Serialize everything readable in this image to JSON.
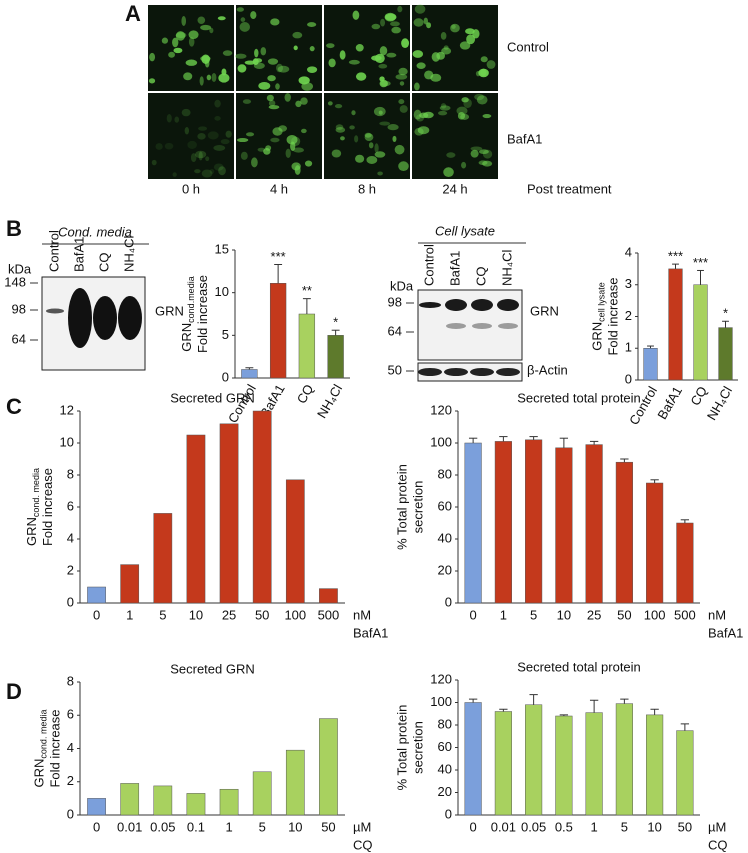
{
  "panel_labels": [
    "A",
    "B",
    "C",
    "D"
  ],
  "microscopy": {
    "rows": [
      "Control",
      "BafA1"
    ],
    "columns": [
      "0 h",
      "4 h",
      "8 h",
      "24 h"
    ],
    "caption": "Post treatment"
  },
  "blots": [
    {
      "header": "Cond. media",
      "unit": "kDa",
      "lanes": [
        "Control",
        "BafA1",
        "CQ",
        "NH₄Cl"
      ],
      "markers": [
        148,
        98,
        64
      ],
      "bands": [
        "GRN"
      ]
    },
    {
      "header": "Cell lysate",
      "unit": "kDa",
      "lanes": [
        "Control",
        "BafA1",
        "CQ",
        "NH₄Cl"
      ],
      "markers": [
        98,
        64,
        50
      ],
      "bands": [
        "GRN",
        "β-Actin"
      ]
    }
  ],
  "chart_data": [
    {
      "type": "bar",
      "categories": [
        "Control",
        "BafA1",
        "CQ",
        "NH₄Cl"
      ],
      "values": [
        1.0,
        11.1,
        7.5,
        5.0
      ],
      "errors": [
        0.2,
        2.2,
        1.8,
        0.6
      ],
      "annotations": [
        null,
        "***",
        "**",
        "*"
      ],
      "colors": [
        "#7b9fdb",
        "#c4391c",
        "#a8d15f",
        "#5e7a2c"
      ],
      "ylim": [
        0,
        15
      ],
      "yticks": [
        0,
        5,
        10,
        15
      ],
      "ylabel_lines": [
        {
          "text": "GRN",
          "sub": "cond.media"
        },
        {
          "text": "Fold increase"
        }
      ]
    },
    {
      "type": "bar",
      "categories": [
        "Control",
        "BafA1",
        "CQ",
        "NH₄Cl"
      ],
      "values": [
        1.0,
        3.5,
        3.0,
        1.65
      ],
      "errors": [
        0.07,
        0.15,
        0.45,
        0.2
      ],
      "annotations": [
        null,
        "***",
        "***",
        "*"
      ],
      "colors": [
        "#7b9fdb",
        "#c4391c",
        "#a8d15f",
        "#5e7a2c"
      ],
      "ylim": [
        0,
        4
      ],
      "yticks": [
        0,
        1,
        2,
        3,
        4
      ],
      "ylabel_lines": [
        {
          "text": "GRN",
          "sub": "cell lysate"
        },
        {
          "text": "Fold increase"
        }
      ]
    },
    {
      "type": "bar",
      "title": "Secreted GRN",
      "categories": [
        "0",
        "1",
        "5",
        "10",
        "25",
        "50",
        "100",
        "500"
      ],
      "values": [
        1.0,
        2.4,
        5.6,
        10.5,
        11.2,
        12.0,
        7.7,
        0.9
      ],
      "colors": [
        "#7b9fdb",
        "#c4391c",
        "#c4391c",
        "#c4391c",
        "#c4391c",
        "#c4391c",
        "#c4391c",
        "#c4391c"
      ],
      "ylim": [
        0,
        12
      ],
      "yticks": [
        0,
        2,
        4,
        6,
        8,
        10,
        12
      ],
      "ylabel_lines": [
        {
          "text": "GRN",
          "sub": "cond. media"
        },
        {
          "text": "Fold increase"
        }
      ],
      "x_unit": "nM",
      "xlabel": "BafA1"
    },
    {
      "type": "bar",
      "title": "Secreted total protein",
      "categories": [
        "0",
        "1",
        "5",
        "10",
        "25",
        "50",
        "100",
        "500"
      ],
      "values": [
        100,
        101,
        102,
        97,
        99,
        88,
        75,
        50
      ],
      "errors": [
        3,
        3,
        2,
        6,
        2,
        2,
        2,
        2
      ],
      "colors": [
        "#7b9fdb",
        "#c4391c",
        "#c4391c",
        "#c4391c",
        "#c4391c",
        "#c4391c",
        "#c4391c",
        "#c4391c"
      ],
      "ylim": [
        0,
        120
      ],
      "yticks": [
        0,
        20,
        40,
        60,
        80,
        100,
        120
      ],
      "ylabel_lines": [
        {
          "text": "% Total protein"
        },
        {
          "text": "secretion"
        }
      ],
      "x_unit": "nM",
      "xlabel": "BafA1"
    },
    {
      "type": "bar",
      "title": "Secreted GRN",
      "categories": [
        "0",
        "0.01",
        "0.05",
        "0.1",
        "1",
        "5",
        "10",
        "50"
      ],
      "values": [
        1.0,
        1.9,
        1.75,
        1.3,
        1.55,
        2.6,
        3.9,
        5.8
      ],
      "colors": [
        "#7b9fdb",
        "#a8d15f",
        "#a8d15f",
        "#a8d15f",
        "#a8d15f",
        "#a8d15f",
        "#a8d15f",
        "#a8d15f"
      ],
      "ylim": [
        0,
        8
      ],
      "yticks": [
        0,
        2,
        4,
        6,
        8
      ],
      "ylabel_lines": [
        {
          "text": "GRN",
          "sub": "cond. media"
        },
        {
          "text": "Fold increase"
        }
      ],
      "x_unit": "µM",
      "xlabel": "CQ"
    },
    {
      "type": "bar",
      "title": "Secreted total protein",
      "categories": [
        "0",
        "0.01",
        "0.05",
        "0.5",
        "1",
        "5",
        "10",
        "50"
      ],
      "values": [
        100,
        92,
        98,
        88,
        91,
        99,
        89,
        75
      ],
      "errors": [
        3,
        2,
        9,
        1,
        11,
        4,
        5,
        6
      ],
      "colors": [
        "#7b9fdb",
        "#a8d15f",
        "#a8d15f",
        "#a8d15f",
        "#a8d15f",
        "#a8d15f",
        "#a8d15f",
        "#a8d15f"
      ],
      "ylim": [
        0,
        120
      ],
      "yticks": [
        0,
        20,
        40,
        60,
        80,
        100,
        120
      ],
      "ylabel_lines": [
        {
          "text": "% Total protein"
        },
        {
          "text": "secretion"
        }
      ],
      "x_unit": "µM",
      "xlabel": "CQ"
    }
  ]
}
